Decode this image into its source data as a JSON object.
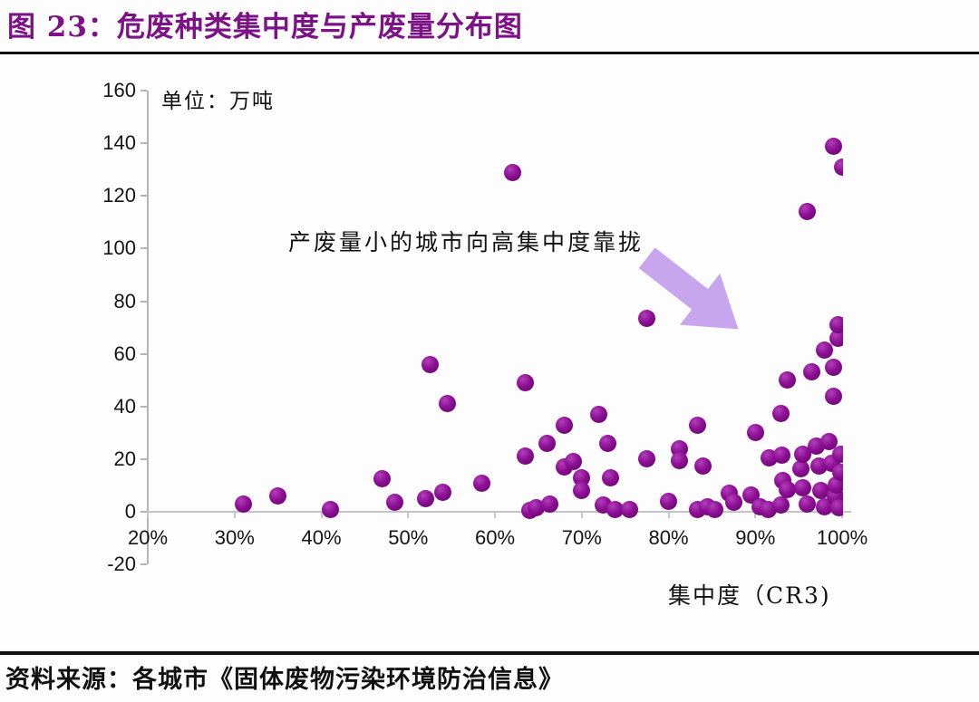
{
  "header": {
    "title": "图 23：危废种类集中度与产废量分布图"
  },
  "footer": {
    "source": "资料来源：各城市《固体废物污染环境防治信息》"
  },
  "chart_data": {
    "type": "scatter",
    "title": "危废种类集中度与产废量分布图",
    "unit_label": "单位：万吨",
    "annotation": "产废量小的城市向高集中度靠拢",
    "xlabel": "集中度（CR3)",
    "xlim": [
      20,
      100
    ],
    "ylim": [
      -20,
      160
    ],
    "grid": false,
    "legend": "none",
    "colors": {
      "point": "#8c0f94",
      "arrow": "#c8a6ee",
      "title": "#7c1286",
      "axis": "#b5b5b5"
    },
    "x_ticks": [
      {
        "value": 20,
        "label": "20%"
      },
      {
        "value": 30,
        "label": "30%"
      },
      {
        "value": 40,
        "label": "40%"
      },
      {
        "value": 50,
        "label": "50%"
      },
      {
        "value": 60,
        "label": "60%"
      },
      {
        "value": 70,
        "label": "70%"
      },
      {
        "value": 80,
        "label": "80%"
      },
      {
        "value": 90,
        "label": "90%"
      },
      {
        "value": 100,
        "label": "100%"
      }
    ],
    "y_ticks": [
      {
        "value": 160,
        "label": "160"
      },
      {
        "value": 140,
        "label": "140"
      },
      {
        "value": 120,
        "label": "120"
      },
      {
        "value": 100,
        "label": "100"
      },
      {
        "value": 80,
        "label": "80"
      },
      {
        "value": 60,
        "label": "60"
      },
      {
        "value": 40,
        "label": "40"
      },
      {
        "value": 20,
        "label": "20"
      },
      {
        "value": 0,
        "label": "0"
      },
      {
        "value": -20,
        "label": "-20"
      }
    ],
    "points": [
      [
        31,
        3
      ],
      [
        35,
        6
      ],
      [
        41,
        1
      ],
      [
        47,
        12.5
      ],
      [
        48.5,
        3.5
      ],
      [
        52,
        5
      ],
      [
        52.5,
        56
      ],
      [
        54,
        7.5
      ],
      [
        54.5,
        41
      ],
      [
        58.5,
        11
      ],
      [
        62,
        129
      ],
      [
        63.5,
        49
      ],
      [
        63.5,
        21
      ],
      [
        64,
        0.5
      ],
      [
        64.8,
        1.5
      ],
      [
        66,
        26
      ],
      [
        66.3,
        3
      ],
      [
        68,
        33
      ],
      [
        68,
        17
      ],
      [
        69,
        19
      ],
      [
        70,
        13
      ],
      [
        70,
        8
      ],
      [
        72,
        37
      ],
      [
        72.5,
        2.5
      ],
      [
        73,
        26
      ],
      [
        73.3,
        13
      ],
      [
        73.8,
        1
      ],
      [
        75.5,
        1
      ],
      [
        77.5,
        73.5
      ],
      [
        77.5,
        20
      ],
      [
        80,
        4
      ],
      [
        81.3,
        24
      ],
      [
        81.3,
        19.5
      ],
      [
        83.3,
        33
      ],
      [
        83.3,
        1
      ],
      [
        84,
        17.5
      ],
      [
        84.5,
        2
      ],
      [
        85.3,
        1
      ],
      [
        87,
        7
      ],
      [
        87.5,
        3.5
      ],
      [
        89.5,
        6.5
      ],
      [
        90,
        30
      ],
      [
        90.5,
        2
      ],
      [
        91.5,
        1
      ],
      [
        91.6,
        20.5
      ],
      [
        92.9,
        2.5
      ],
      [
        93,
        37.5
      ],
      [
        93.1,
        21.5
      ],
      [
        93.2,
        12
      ],
      [
        93.7,
        8.5
      ],
      [
        93.7,
        50
      ],
      [
        95.3,
        16.5
      ],
      [
        95.5,
        22
      ],
      [
        95.5,
        9
      ],
      [
        96,
        114
      ],
      [
        96,
        3
      ],
      [
        96.5,
        53
      ],
      [
        97,
        25
      ],
      [
        97.3,
        17.5
      ],
      [
        97.5,
        8
      ],
      [
        98,
        2
      ],
      [
        98,
        61.5
      ],
      [
        98.5,
        26.5
      ],
      [
        98.8,
        18.5
      ],
      [
        99,
        139
      ],
      [
        99,
        55
      ],
      [
        99,
        44
      ],
      [
        99.2,
        6
      ],
      [
        99.3,
        10
      ],
      [
        99.5,
        66
      ],
      [
        99.5,
        71
      ],
      [
        99.6,
        1.5
      ],
      [
        99.8,
        15
      ],
      [
        99.8,
        22
      ],
      [
        100,
        131
      ]
    ]
  }
}
